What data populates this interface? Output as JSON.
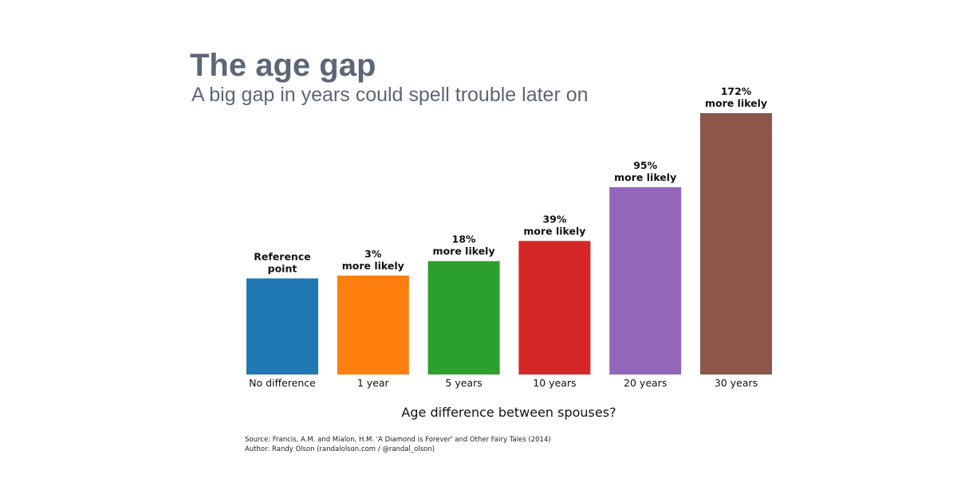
{
  "header": {
    "title": "The age gap",
    "subtitle": "A big gap in years could spell trouble later on"
  },
  "chart_data": {
    "type": "bar",
    "title": "The age gap",
    "subtitle": "A big gap in years could spell trouble later on",
    "xlabel": "Age difference between spouses?",
    "ylabel": "",
    "categories": [
      "No difference",
      "1 year",
      "5 years",
      "10 years",
      "20 years",
      "30 years"
    ],
    "values": [
      100,
      103,
      118,
      139,
      195,
      272
    ],
    "value_labels": [
      [
        "Reference",
        "point"
      ],
      [
        "3%",
        "more likely"
      ],
      [
        "18%",
        "more likely"
      ],
      [
        "39%",
        "more likely"
      ],
      [
        "95%",
        "more likely"
      ],
      [
        "172%",
        "more likely"
      ]
    ],
    "colors": [
      "#1f77b4",
      "#ff7f0e",
      "#2ca02c",
      "#d62728",
      "#9467bd",
      "#8c564b"
    ],
    "ylim": [
      0,
      272
    ],
    "grid": false,
    "legend": "none"
  },
  "footer": {
    "source": "Source: Francis, A.M. and Mialon, H.M. 'A Diamond is Forever' and Other Fairy Tales (2014)",
    "author": "Author: Randy Olson (randalolson.com / @randal_olson)"
  }
}
